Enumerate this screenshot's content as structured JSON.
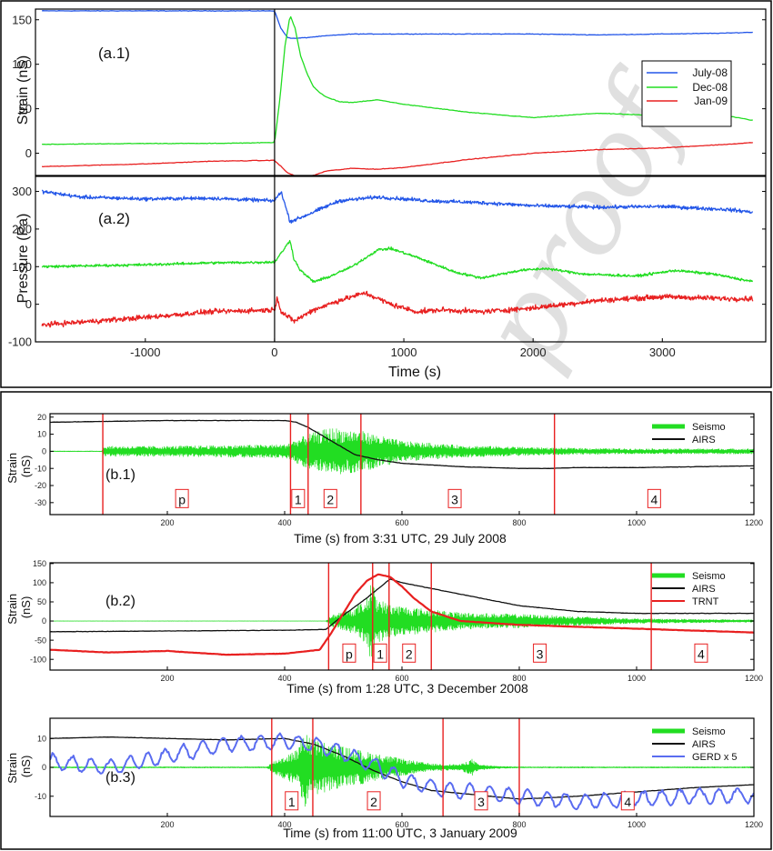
{
  "colors": {
    "blue": "#2356e8",
    "green": "#22dd22",
    "red": "#e82020",
    "black": "#111111",
    "gerd": "#5a6cf0",
    "marker": "#e82020",
    "watermark": "#999999"
  },
  "watermark": "proof",
  "chart_data": [
    {
      "id": "a1",
      "type": "line",
      "panel_label": "(a.1)",
      "ylabel": "Strain (nS)",
      "xlim": [
        -1850,
        3800
      ],
      "ylim": [
        -25,
        162
      ],
      "yticks": [
        0,
        50,
        100,
        150
      ],
      "legend": "right",
      "series": [
        {
          "name": "July-08",
          "color": "blue",
          "x": [
            -1800,
            -1000,
            -500,
            0,
            50,
            100,
            150,
            250,
            400,
            600,
            1000,
            1500,
            2000,
            2500,
            3000,
            3500,
            3700
          ],
          "y": [
            160,
            160,
            160,
            160,
            140,
            130,
            129,
            130,
            132,
            134,
            134,
            134,
            134,
            133,
            134,
            135,
            136
          ]
        },
        {
          "name": "Dec-08",
          "color": "green",
          "x": [
            -1800,
            -1000,
            -500,
            0,
            40,
            80,
            120,
            160,
            200,
            250,
            300,
            350,
            400,
            500,
            600,
            800,
            1000,
            1500,
            2000,
            2500,
            3000,
            3500,
            3700
          ],
          "y": [
            10,
            11,
            11,
            12,
            60,
            120,
            155,
            140,
            110,
            90,
            75,
            68,
            63,
            58,
            57,
            60,
            55,
            46,
            40,
            45,
            42,
            42,
            37
          ]
        },
        {
          "name": "Jan-09",
          "color": "red",
          "x": [
            -1800,
            -1000,
            -500,
            0,
            100,
            200,
            300,
            400,
            600,
            800,
            1000,
            1500,
            2000,
            2500,
            3000,
            3500,
            3700
          ],
          "y": [
            -15,
            -12,
            -9,
            -8,
            -22,
            -28,
            -25,
            -20,
            -17,
            -18,
            -16,
            -7,
            0,
            4,
            6,
            10,
            12
          ]
        }
      ]
    },
    {
      "id": "a2",
      "type": "line",
      "panel_label": "(a.2)",
      "ylabel": "Pressure (Pa)",
      "xlabel": "Time (s)",
      "xlim": [
        -1850,
        3800
      ],
      "ylim": [
        -100,
        340
      ],
      "xticks": [
        -1000,
        0,
        1000,
        2000,
        3000
      ],
      "yticks": [
        -100,
        0,
        100,
        200,
        300
      ],
      "series": [
        {
          "name": "July-08",
          "color": "blue",
          "noise": 7,
          "x": [
            -1800,
            -1500,
            -1000,
            -500,
            0,
            50,
            120,
            200,
            300,
            500,
            800,
            1200,
            1600,
            2000,
            2500,
            3000,
            3500,
            3700
          ],
          "y": [
            300,
            285,
            280,
            282,
            275,
            300,
            220,
            230,
            245,
            275,
            285,
            275,
            270,
            262,
            258,
            260,
            252,
            245
          ]
        },
        {
          "name": "Dec-08",
          "color": "green",
          "noise": 5,
          "x": [
            -1800,
            -1000,
            -500,
            0,
            80,
            120,
            150,
            200,
            300,
            400,
            600,
            800,
            900,
            1100,
            1400,
            1600,
            1900,
            2100,
            2400,
            2800,
            3100,
            3400,
            3700
          ],
          "y": [
            100,
            105,
            110,
            112,
            150,
            170,
            120,
            90,
            60,
            70,
            100,
            145,
            148,
            125,
            85,
            70,
            90,
            95,
            80,
            75,
            90,
            80,
            60
          ]
        },
        {
          "name": "Jan-09",
          "color": "red",
          "noise": 10,
          "x": [
            -1800,
            -1000,
            -500,
            0,
            20,
            50,
            150,
            300,
            500,
            700,
            900,
            1100,
            1300,
            1600,
            2000,
            2500,
            3000,
            3500,
            3700
          ],
          "y": [
            -55,
            -35,
            -20,
            -15,
            20,
            -20,
            -45,
            -15,
            10,
            30,
            0,
            -20,
            -15,
            -20,
            -10,
            10,
            20,
            15,
            15
          ]
        }
      ]
    },
    {
      "id": "b1",
      "type": "line",
      "panel_label": "(b.1)",
      "ylabel": "Strain\n(nS)",
      "xlabel": "Time (s) from 3:31 UTC, 29 July 2008",
      "xlim": [
        0,
        1200
      ],
      "ylim": [
        -37,
        22
      ],
      "xticks": [
        200,
        400,
        600,
        800,
        1000,
        1200
      ],
      "yticks": [
        -30,
        -20,
        -10,
        0,
        10,
        20
      ],
      "legend": "top-right",
      "markers": [
        90,
        410,
        440,
        530,
        860
      ],
      "phase_labels": [
        {
          "label": "p",
          "x": 225
        },
        {
          "label": "1",
          "x": 423
        },
        {
          "label": "2",
          "x": 478
        },
        {
          "label": "3",
          "x": 690
        },
        {
          "label": "4",
          "x": 1030
        }
      ],
      "series": [
        {
          "name": "Seismo",
          "color": "green",
          "kind": "seismo",
          "envelope_x": [
            0,
            88,
            92,
            200,
            400,
            440,
            480,
            530,
            600,
            700,
            860,
            1000,
            1200
          ],
          "envelope_y": [
            0.2,
            0.2,
            3,
            3,
            4,
            10,
            14,
            12,
            6,
            3.5,
            2,
            1.5,
            1.5
          ]
        },
        {
          "name": "AIRS",
          "color": "black",
          "x": [
            0,
            100,
            200,
            300,
            400,
            420,
            440,
            480,
            520,
            560,
            600,
            700,
            800,
            850,
            900,
            1000,
            1100,
            1200
          ],
          "y": [
            17,
            17.5,
            18,
            18,
            18,
            17,
            14,
            6,
            -2,
            -5,
            -7,
            -9,
            -10,
            -10,
            -9.5,
            -9.5,
            -9,
            -8.5
          ]
        }
      ]
    },
    {
      "id": "b2",
      "type": "line",
      "panel_label": "(b.2)",
      "ylabel": "Strain\n(nS)",
      "xlabel": "Time (s) from 1:28 UTC, 3 December 2008",
      "xlim": [
        0,
        1200
      ],
      "ylim": [
        -128,
        152
      ],
      "xticks": [
        200,
        400,
        600,
        800,
        1000,
        1200
      ],
      "yticks": [
        -100,
        -50,
        0,
        50,
        100,
        150
      ],
      "legend": "top-right",
      "markers": [
        475,
        550,
        578,
        650,
        1025
      ],
      "phase_labels": [
        {
          "label": "p",
          "x": 510
        },
        {
          "label": "1",
          "x": 563
        },
        {
          "label": "2",
          "x": 612
        },
        {
          "label": "3",
          "x": 835
        },
        {
          "label": "4",
          "x": 1110
        }
      ],
      "series": [
        {
          "name": "Seismo",
          "color": "green",
          "kind": "seismo",
          "envelope_x": [
            0,
            470,
            480,
            520,
            540,
            548,
            556,
            575,
            620,
            700,
            800,
            900,
            1000,
            1200
          ],
          "envelope_y": [
            0.3,
            0.3,
            15,
            35,
            60,
            115,
            65,
            45,
            35,
            22,
            18,
            12,
            6,
            3
          ]
        },
        {
          "name": "AIRS",
          "color": "black",
          "x": [
            0,
            200,
            400,
            470,
            500,
            540,
            580,
            600,
            700,
            800,
            900,
            1000,
            1100,
            1200
          ],
          "y": [
            -28,
            -26,
            -24,
            -22,
            15,
            60,
            110,
            100,
            70,
            40,
            25,
            20,
            20,
            20
          ]
        },
        {
          "name": "TRNT",
          "color": "red",
          "x": [
            0,
            100,
            200,
            300,
            400,
            460,
            480,
            500,
            520,
            540,
            560,
            580,
            600,
            620,
            650,
            700,
            800,
            900,
            1000,
            1100,
            1200
          ],
          "y": [
            -75,
            -82,
            -78,
            -88,
            -85,
            -75,
            -30,
            20,
            70,
            105,
            122,
            115,
            90,
            60,
            25,
            0,
            -10,
            -15,
            -20,
            -25,
            -30
          ]
        }
      ]
    },
    {
      "id": "b3",
      "type": "line",
      "panel_label": "(b.3)",
      "ylabel": "Strain\n(nS)",
      "xlabel": "Time (s) from 11:00 UTC, 3 January 2009",
      "xlim": [
        0,
        1200
      ],
      "ylim": [
        -17,
        17
      ],
      "xticks": [
        200,
        400,
        600,
        800,
        1000,
        1200
      ],
      "yticks": [
        -10,
        0,
        10
      ],
      "legend": "top-right",
      "markers": [
        378,
        448,
        670,
        800
      ],
      "phase_labels": [
        {
          "label": "1",
          "x": 412
        },
        {
          "label": "2",
          "x": 552
        },
        {
          "label": "3",
          "x": 735
        },
        {
          "label": "4",
          "x": 985
        }
      ],
      "series": [
        {
          "name": "Seismo",
          "color": "green",
          "kind": "seismo",
          "envelope_x": [
            0,
            370,
            380,
            420,
            435,
            445,
            480,
            550,
            600,
            650,
            700,
            720,
            730,
            760,
            800,
            1200
          ],
          "envelope_y": [
            0.2,
            0.2,
            2,
            6,
            14,
            10,
            8,
            5,
            3,
            1.2,
            1,
            3,
            1,
            0.4,
            0.2,
            0.2
          ]
        },
        {
          "name": "AIRS",
          "color": "black",
          "x": [
            0,
            100,
            200,
            300,
            400,
            450,
            500,
            550,
            600,
            650,
            700,
            800,
            900,
            1000,
            1100,
            1200
          ],
          "y": [
            10,
            10.5,
            10,
            9.5,
            10,
            8,
            4,
            -1,
            -5,
            -8,
            -9,
            -11,
            -10,
            -8.5,
            -7,
            -6
          ]
        },
        {
          "name": "GERD x 5",
          "color": "gerd",
          "wavy": 2.5,
          "x": [
            0,
            100,
            200,
            300,
            400,
            450,
            500,
            550,
            600,
            650,
            700,
            800,
            900,
            1000,
            1100,
            1200
          ],
          "y": [
            2,
            0,
            4,
            8,
            9,
            8,
            5,
            1,
            -4,
            -7,
            -8,
            -10,
            -12,
            -11,
            -10,
            -10
          ]
        }
      ]
    }
  ]
}
